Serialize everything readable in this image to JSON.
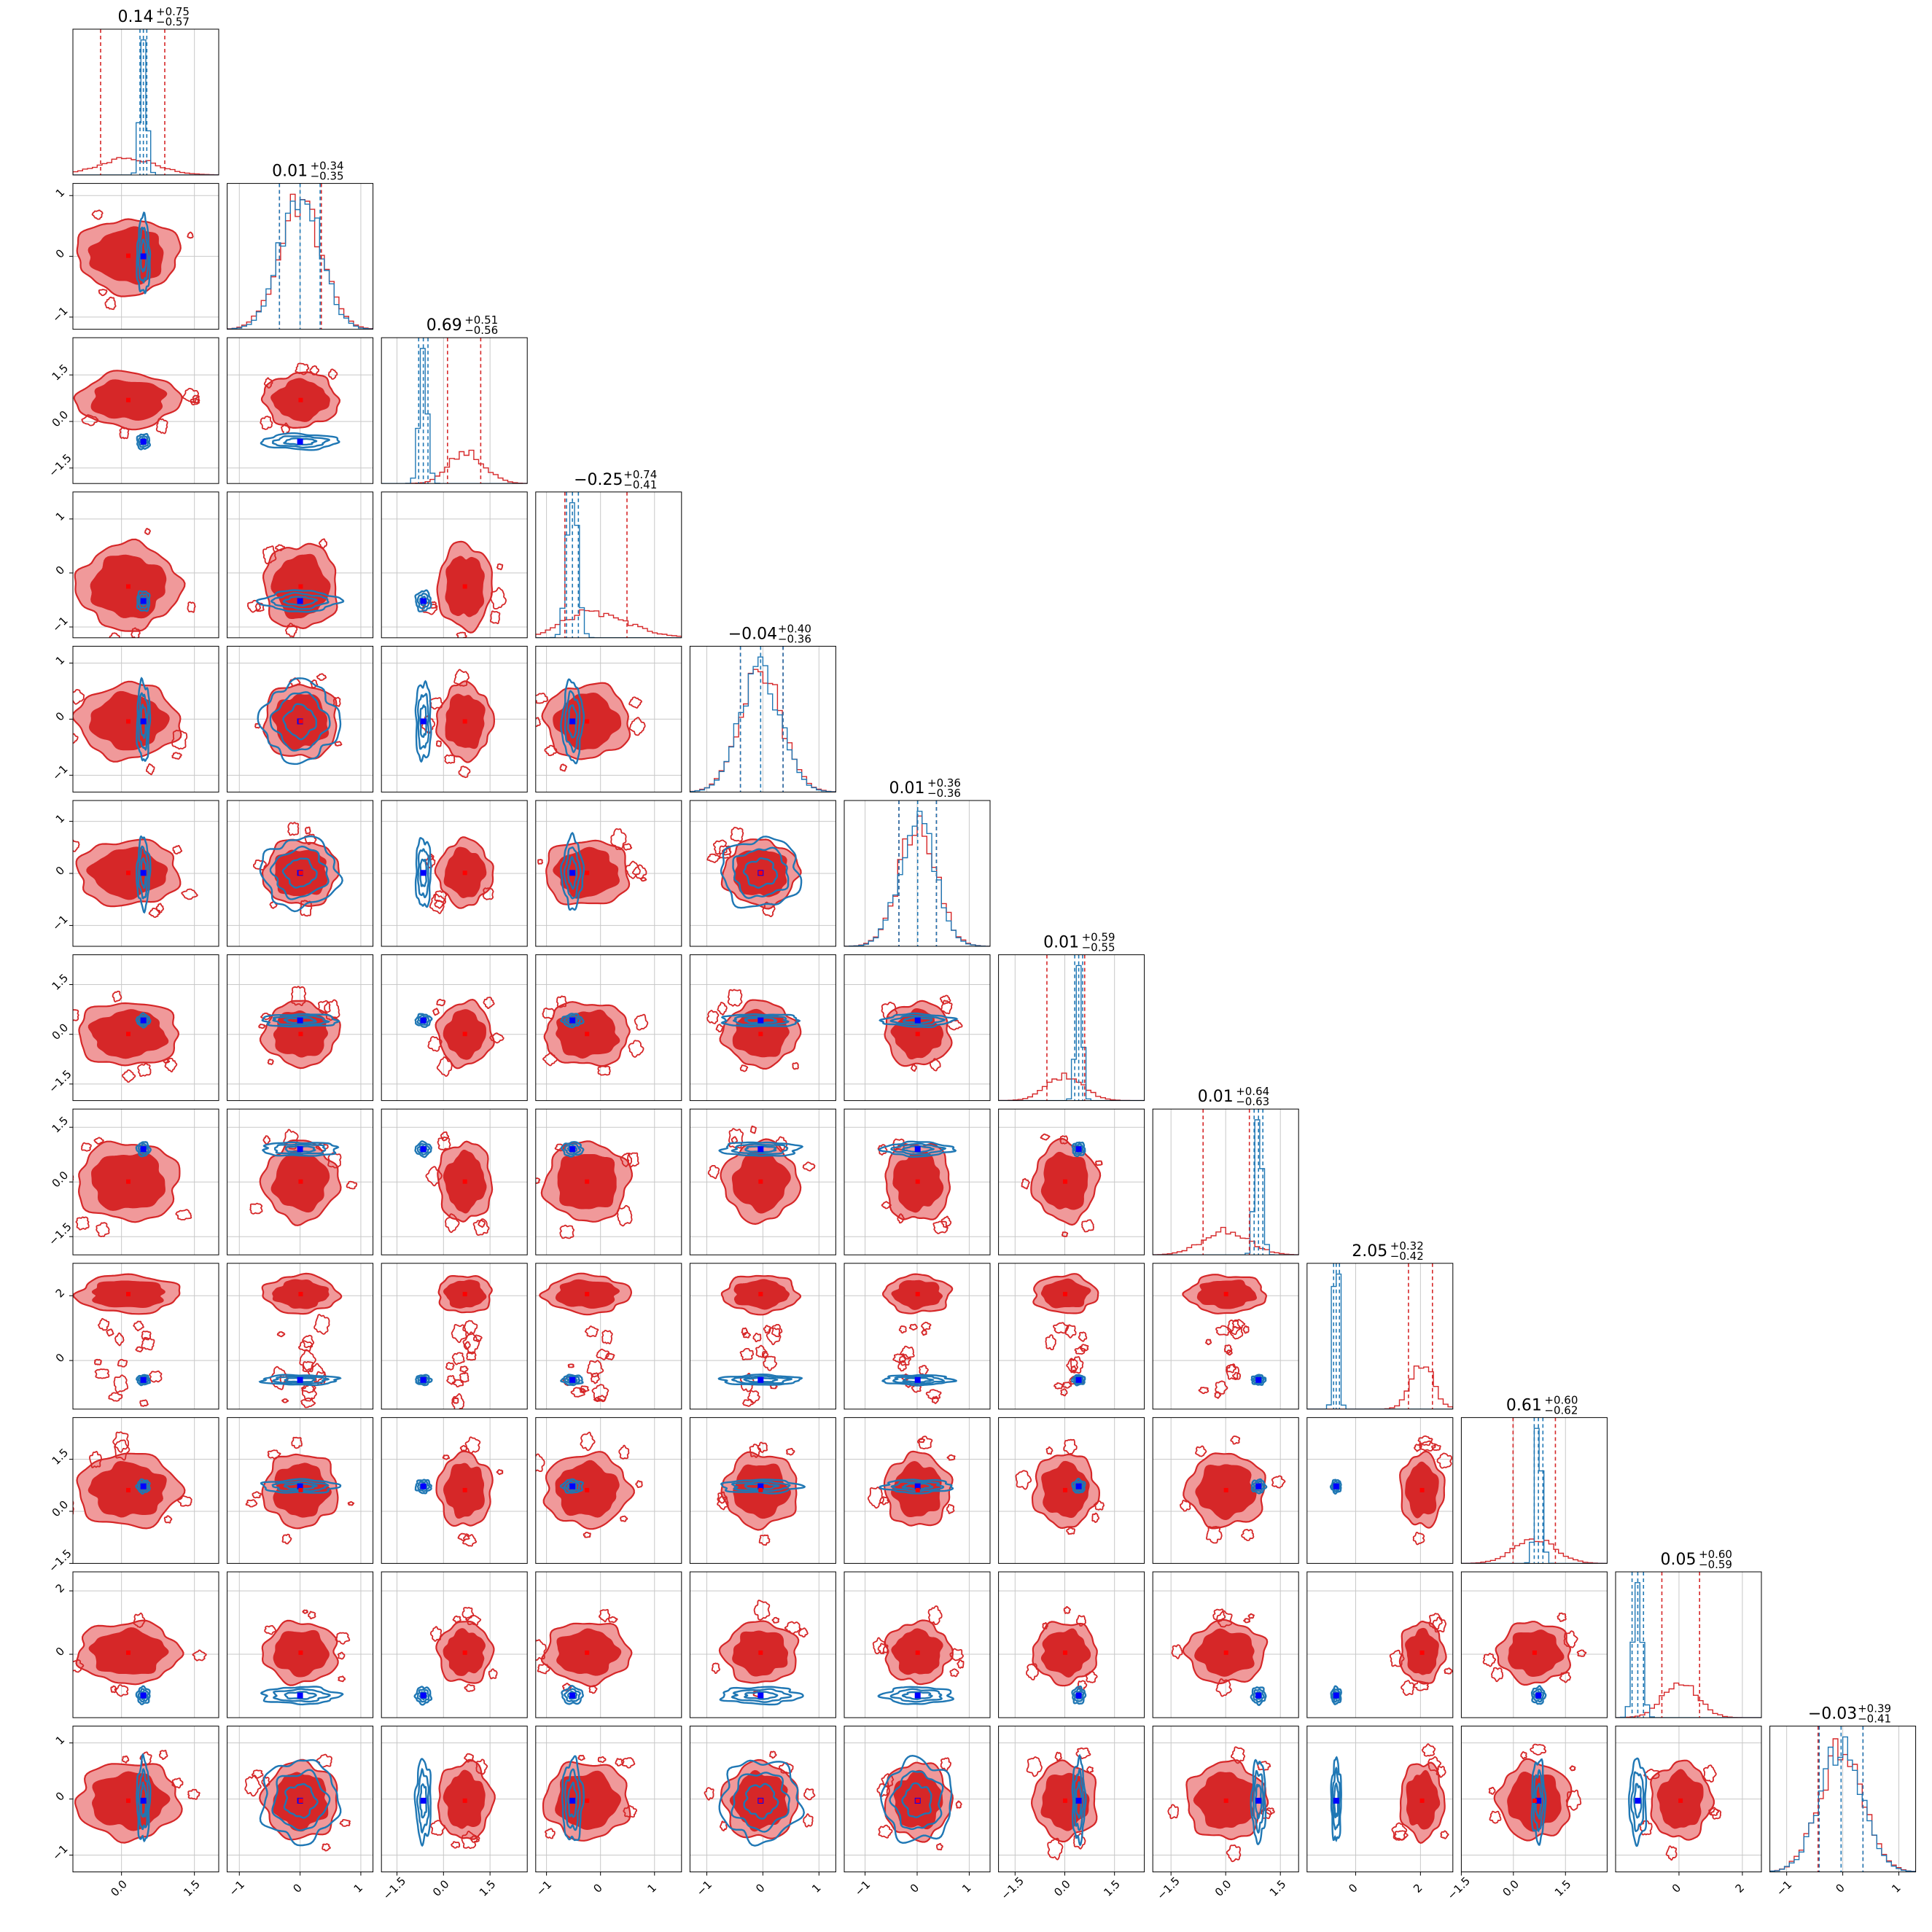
{
  "figure": {
    "colors": {
      "red": "#d62728",
      "red_light": "#f0999a",
      "blue": "#1f77b4",
      "marker_blue": "#0000ff",
      "grid": "#c8c8c8"
    }
  },
  "chart_data": {
    "type": "corner",
    "n_params": 12,
    "grid": true,
    "titles": [
      {
        "value": "0.14",
        "plus": "+0.75",
        "minus": "−0.57"
      },
      {
        "value": "0.01",
        "plus": "+0.34",
        "minus": "−0.35"
      },
      {
        "value": "0.69",
        "plus": "+0.51",
        "minus": "−0.56"
      },
      {
        "value": "−0.25",
        "plus": "+0.74",
        "minus": "−0.41"
      },
      {
        "value": "−0.04",
        "plus": "+0.40",
        "minus": "−0.36"
      },
      {
        "value": "0.01",
        "plus": "+0.36",
        "minus": "−0.36"
      },
      {
        "value": "0.01",
        "plus": "+0.59",
        "minus": "−0.55"
      },
      {
        "value": "0.01",
        "plus": "+0.64",
        "minus": "−0.63"
      },
      {
        "value": "2.05",
        "plus": "+0.32",
        "minus": "−0.42"
      },
      {
        "value": "0.61",
        "plus": "+0.60",
        "minus": "−0.62"
      },
      {
        "value": "0.05",
        "plus": "+0.60",
        "minus": "−0.59"
      },
      {
        "value": "−0.03",
        "plus": "+0.39",
        "minus": "−0.41"
      }
    ],
    "params": [
      {
        "range": [
          -1.0,
          2.0
        ],
        "ticks": [
          "0.0",
          "1.5"
        ],
        "tick_values": [
          0.0,
          1.5
        ],
        "red": {
          "median": 0.14,
          "lo": -0.43,
          "hi": 0.89,
          "spread": 0.6,
          "skew": 0
        },
        "blue": {
          "center": 0.45,
          "width": 0.07,
          "q_lo": 0.38,
          "q_hi": 0.52
        }
      },
      {
        "range": [
          -1.2,
          1.2
        ],
        "ticks": [
          "−1",
          "0",
          "1"
        ],
        "tick_values": [
          -1,
          0,
          1
        ],
        "red": {
          "median": 0.01,
          "lo": -0.34,
          "hi": 0.35,
          "spread": 0.35,
          "skew": 0
        },
        "blue": {
          "center": 0.0,
          "width": 0.33,
          "q_lo": -0.34,
          "q_hi": 0.33
        }
      },
      {
        "range": [
          -2.0,
          2.7
        ],
        "ticks": [
          "−1.5",
          "0.0",
          "1.5"
        ],
        "tick_values": [
          -1.5,
          0.0,
          1.5
        ],
        "red": {
          "median": 0.69,
          "lo": 0.13,
          "hi": 1.2,
          "spread": 0.5,
          "skew": 0.2
        },
        "blue": {
          "center": -0.65,
          "width": 0.13,
          "q_lo": -0.8,
          "q_hi": -0.5
        }
      },
      {
        "range": [
          -1.2,
          1.5
        ],
        "ticks": [
          "−1",
          "0",
          "1"
        ],
        "tick_values": [
          -1,
          0,
          1
        ],
        "red": {
          "median": -0.25,
          "lo": -0.66,
          "hi": 0.49,
          "spread": 0.45,
          "skew": 0.6
        },
        "blue": {
          "center": -0.52,
          "width": 0.1,
          "q_lo": -0.63,
          "q_hi": -0.41
        }
      },
      {
        "range": [
          -1.3,
          1.3
        ],
        "ticks": [
          "−1",
          "0",
          "1"
        ],
        "tick_values": [
          -1,
          0,
          1
        ],
        "red": {
          "median": -0.04,
          "lo": -0.4,
          "hi": 0.36,
          "spread": 0.38,
          "skew": 0
        },
        "blue": {
          "center": -0.04,
          "width": 0.37,
          "q_lo": -0.4,
          "q_hi": 0.36
        }
      },
      {
        "range": [
          -1.4,
          1.4
        ],
        "ticks": [
          "−1",
          "0",
          "1"
        ],
        "tick_values": [
          -1,
          0,
          1
        ],
        "red": {
          "median": 0.01,
          "lo": -0.35,
          "hi": 0.37,
          "spread": 0.36,
          "skew": 0
        },
        "blue": {
          "center": 0.01,
          "width": 0.35,
          "q_lo": -0.35,
          "q_hi": 0.37
        }
      },
      {
        "range": [
          -2.0,
          2.4
        ],
        "ticks": [
          "−1.5",
          "0.0",
          "1.5"
        ],
        "tick_values": [
          -1.5,
          0.0,
          1.5
        ],
        "red": {
          "median": 0.01,
          "lo": -0.54,
          "hi": 0.6,
          "spread": 0.55,
          "skew": 0
        },
        "blue": {
          "center": 0.42,
          "width": 0.1,
          "q_lo": 0.3,
          "q_hi": 0.54
        }
      },
      {
        "range": [
          -2.0,
          2.0
        ],
        "ticks": [
          "−1.5",
          "0.0",
          "1.5"
        ],
        "tick_values": [
          -1.5,
          0.0,
          1.5
        ],
        "red": {
          "median": 0.01,
          "lo": -0.62,
          "hi": 0.65,
          "spread": 0.62,
          "skew": 0
        },
        "blue": {
          "center": 0.9,
          "width": 0.1,
          "q_lo": 0.78,
          "q_hi": 1.02
        }
      },
      {
        "range": [
          -1.5,
          3.0
        ],
        "ticks": [
          "0",
          "2"
        ],
        "tick_values": [
          0,
          2
        ],
        "red": {
          "median": 2.05,
          "lo": 1.63,
          "hi": 2.37,
          "spread": 0.35,
          "skew": 0
        },
        "blue": {
          "center": -0.6,
          "width": 0.08,
          "q_lo": -0.68,
          "q_hi": -0.5
        }
      },
      {
        "range": [
          -1.5,
          2.7
        ],
        "ticks": [
          "−1.5",
          "0.0",
          "1.5"
        ],
        "tick_values": [
          -1.5,
          0.0,
          1.5
        ],
        "red": {
          "median": 0.61,
          "lo": -0.01,
          "hi": 1.21,
          "spread": 0.6,
          "skew": 0
        },
        "blue": {
          "center": 0.72,
          "width": 0.1,
          "q_lo": 0.6,
          "q_hi": 0.85
        }
      },
      {
        "range": [
          -2.0,
          2.6
        ],
        "ticks": [
          "0",
          "2"
        ],
        "tick_values": [
          0,
          2
        ],
        "red": {
          "median": 0.05,
          "lo": -0.54,
          "hi": 0.65,
          "spread": 0.55,
          "skew": 0
        },
        "blue": {
          "center": -1.3,
          "width": 0.14,
          "q_lo": -1.48,
          "q_hi": -1.12
        }
      },
      {
        "range": [
          -1.3,
          1.3
        ],
        "ticks": [
          "−1",
          "0",
          "1"
        ],
        "tick_values": [
          -1,
          0,
          1
        ],
        "red": {
          "median": -0.03,
          "lo": -0.44,
          "hi": 0.36,
          "spread": 0.39,
          "skew": 0
        },
        "blue": {
          "center": -0.03,
          "width": 0.38,
          "q_lo": -0.42,
          "q_hi": 0.36
        }
      }
    ]
  }
}
